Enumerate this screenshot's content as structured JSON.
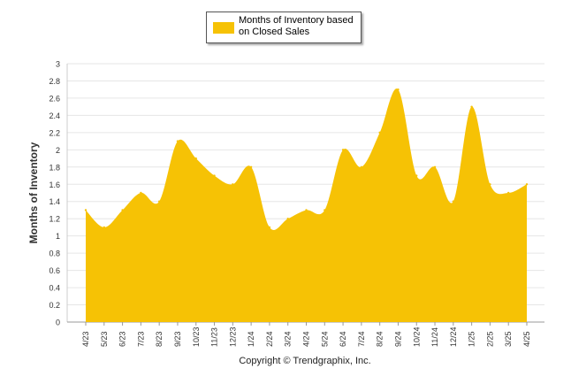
{
  "chart_data": {
    "type": "area",
    "legend": {
      "label": "Months of Inventory based on Closed Sales",
      "placement": "top-center"
    },
    "ylabel": "Months of Inventory",
    "xlabel": "",
    "ylim": [
      0,
      3
    ],
    "yticks": [
      "0",
      "0.2",
      "0.4",
      "0.6",
      "0.8",
      "1",
      "1.2",
      "1.4",
      "1.6",
      "1.8",
      "2",
      "2.2",
      "2.4",
      "2.6",
      "2.8",
      "3"
    ],
    "grid": true,
    "color": "#F6C205",
    "categories": [
      "4/23",
      "5/23",
      "6/23",
      "7/23",
      "8/23",
      "9/23",
      "10/23",
      "11/23",
      "12/23",
      "1/24",
      "2/24",
      "3/24",
      "4/24",
      "5/24",
      "6/24",
      "7/24",
      "8/24",
      "9/24",
      "10/24",
      "11/24",
      "12/24",
      "1/25",
      "2/25",
      "3/25",
      "4/25"
    ],
    "series": [
      {
        "name": "Months of Inventory based on Closed Sales",
        "values": [
          1.3,
          1.1,
          1.3,
          1.5,
          1.4,
          2.1,
          1.9,
          1.7,
          1.6,
          1.8,
          1.1,
          1.2,
          1.3,
          1.3,
          2.0,
          1.8,
          2.2,
          2.7,
          1.7,
          1.8,
          1.4,
          2.5,
          1.6,
          1.5,
          1.6
        ]
      }
    ]
  },
  "footer": {
    "copyright": "Copyright © Trendgraphix, Inc."
  }
}
